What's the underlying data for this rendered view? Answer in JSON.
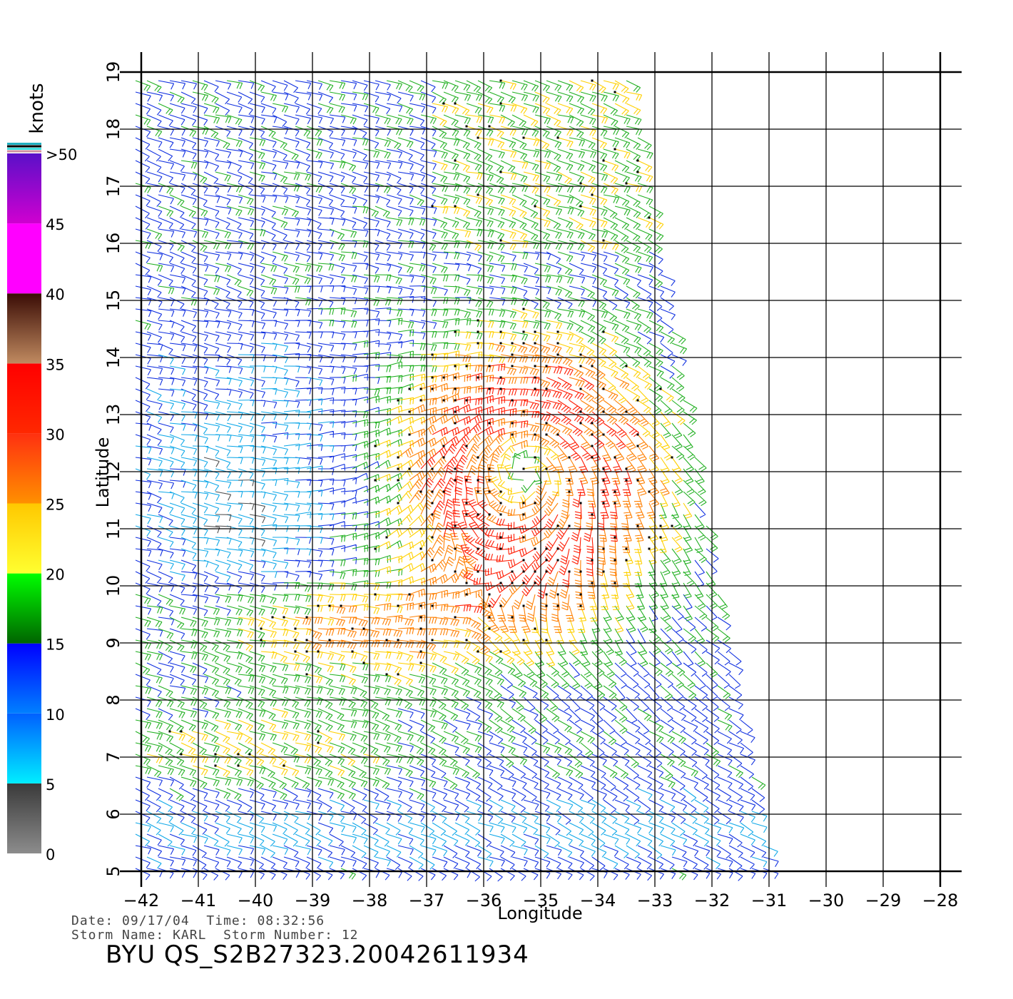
{
  "chart_data": {
    "type": "wind-barb-map",
    "xlabel": "Longitude",
    "ylabel": "Latitude",
    "xlim": [
      -42,
      -28
    ],
    "ylim": [
      5,
      19
    ],
    "x_ticks": [
      -42,
      -41,
      -40,
      -39,
      -38,
      -37,
      -36,
      -35,
      -34,
      -33,
      -32,
      -31,
      -30,
      -29,
      -28
    ],
    "y_ticks": [
      5,
      6,
      7,
      8,
      9,
      10,
      11,
      12,
      13,
      14,
      15,
      16,
      17,
      18,
      19
    ],
    "grid": true,
    "colorbar": {
      "unit": "knots",
      "ticks": [
        "0",
        "5",
        "10",
        "15",
        "20",
        "25",
        "30",
        "35",
        "40",
        "45",
        ">50"
      ],
      "segments": [
        {
          "from": 0,
          "to": 5,
          "top": "#3a3a3a",
          "bottom": "#8c8c8c"
        },
        {
          "from": 5,
          "to": 10,
          "top": "#0060ff",
          "bottom": "#00eeff"
        },
        {
          "from": 10,
          "to": 15,
          "top": "#0000ff",
          "bottom": "#0080ff"
        },
        {
          "from": 15,
          "to": 20,
          "top": "#00ff00",
          "bottom": "#006400"
        },
        {
          "from": 20,
          "to": 25,
          "top": "#ffc800",
          "bottom": "#ffff30"
        },
        {
          "from": 25,
          "to": 30,
          "top": "#ff3010",
          "bottom": "#ff9000"
        },
        {
          "from": 30,
          "to": 35,
          "top": "#ff0000",
          "bottom": "#ff2800"
        },
        {
          "from": 35,
          "to": 40,
          "top": "#3a0c05",
          "bottom": "#c08a60"
        },
        {
          "from": 40,
          "to": 45,
          "top": "#ff00ff",
          "bottom": "#ff00ff"
        },
        {
          "from": 45,
          "to": 50,
          "top": "#5a10c8",
          "bottom": "#d000d0"
        }
      ],
      "top_stripes": [
        "#20b0c0",
        "#000000",
        "#40e0e0",
        "#d090a0"
      ]
    },
    "swath": {
      "lat": [
        5,
        19
      ],
      "lon_west": [
        -42,
        -42
      ],
      "lon_east": [
        -31,
        -33.5
      ]
    },
    "storm_center": {
      "lon": -35.3,
      "lat": 12.0
    }
  },
  "info": {
    "date_label": "Date:",
    "date": "09/17/04",
    "time_label": "Time:",
    "time": "08:32:56",
    "storm_name_label": "Storm Name:",
    "storm_name": "KARL",
    "storm_number_label": "Storm Number:",
    "storm_number": "12"
  },
  "file_id": "BYU  QS_S2B27323.20042611934"
}
